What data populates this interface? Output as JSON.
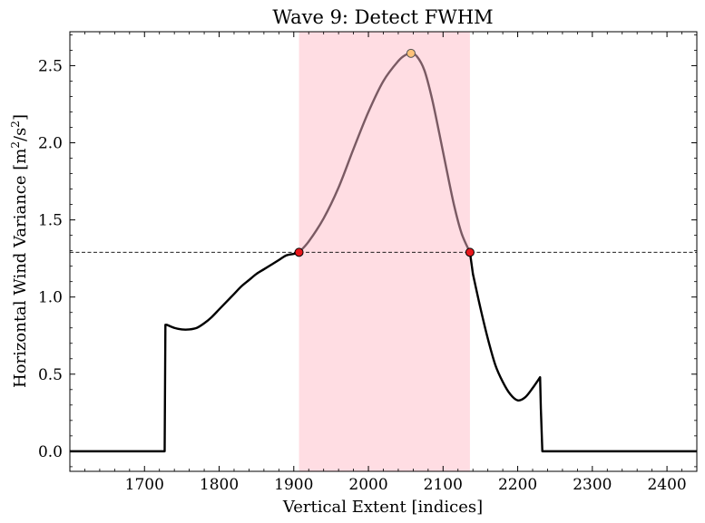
{
  "chart_data": {
    "type": "line",
    "title": "Wave 9: Detect FWHM",
    "xlabel": "Vertical Extent [indices]",
    "ylabel_main": "Horizontal Wind Variance [m",
    "ylabel_sup1": "2",
    "ylabel_mid": "/s",
    "ylabel_sup2": "2",
    "ylabel_end": "]",
    "xlim": [
      1600,
      2440
    ],
    "ylim": [
      -0.13,
      2.72
    ],
    "xticks": [
      1700,
      1800,
      1900,
      2000,
      2100,
      2200,
      2300,
      2400
    ],
    "yticks": [
      0.0,
      0.5,
      1.0,
      1.5,
      2.0,
      2.5
    ],
    "xtick_labels": [
      "1700",
      "1800",
      "1900",
      "2000",
      "2100",
      "2200",
      "2300",
      "2400"
    ],
    "ytick_labels": [
      "0.0",
      "0.5",
      "1.0",
      "1.5",
      "2.0",
      "2.5"
    ],
    "grid": false,
    "colors": {
      "line": "#000000",
      "highlight_line": "#7a5a63",
      "span_fill": "#ffdde3",
      "half_max_line": "#000000",
      "fwhm_point": "#e8161b",
      "peak_point": "#ffc27a"
    },
    "x": [
      1600,
      1727,
      1728,
      1730,
      1740,
      1750,
      1760,
      1770,
      1780,
      1790,
      1800,
      1810,
      1820,
      1830,
      1840,
      1850,
      1860,
      1870,
      1880,
      1890,
      1900,
      1907,
      1920,
      1940,
      1960,
      1980,
      2000,
      2020,
      2040,
      2050,
      2057,
      2065,
      2075,
      2085,
      2095,
      2105,
      2115,
      2125,
      2136,
      2140,
      2150,
      2160,
      2170,
      2180,
      2190,
      2200,
      2210,
      2220,
      2230,
      2231,
      2233,
      2440
    ],
    "y": [
      0.0,
      0.0,
      0.82,
      0.82,
      0.8,
      0.79,
      0.79,
      0.8,
      0.83,
      0.87,
      0.92,
      0.97,
      1.02,
      1.07,
      1.11,
      1.15,
      1.18,
      1.21,
      1.24,
      1.27,
      1.28,
      1.29,
      1.36,
      1.51,
      1.71,
      1.96,
      2.2,
      2.4,
      2.53,
      2.57,
      2.58,
      2.56,
      2.47,
      2.29,
      2.06,
      1.82,
      1.59,
      1.41,
      1.29,
      1.15,
      0.93,
      0.73,
      0.56,
      0.45,
      0.37,
      0.33,
      0.35,
      0.41,
      0.48,
      0.28,
      0.0,
      0.0
    ],
    "fwhm_span": [
      1907,
      2136
    ],
    "half_max": 1.29,
    "fwhm_points": [
      {
        "x": 1907,
        "y": 1.29
      },
      {
        "x": 2136,
        "y": 1.29
      }
    ],
    "peak": {
      "x": 2057,
      "y": 2.58
    }
  }
}
